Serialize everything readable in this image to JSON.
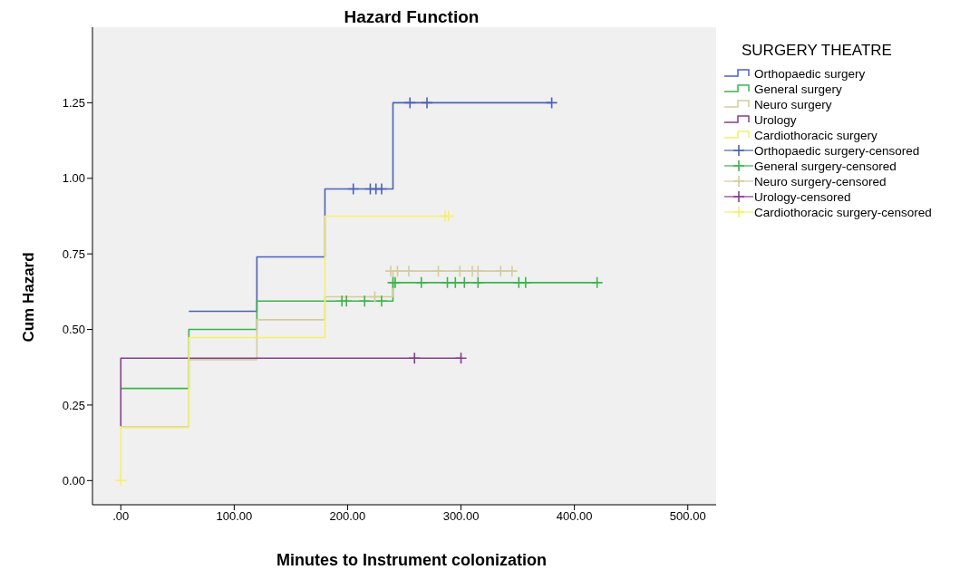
{
  "chart_data": {
    "type": "step",
    "title": "Hazard Function",
    "xlabel": "Minutes to Instrument colonization",
    "ylabel": "Cum Hazard",
    "legend_title": "SURGERY THEATRE",
    "legend": "right",
    "xlim": [
      -25,
      525
    ],
    "xticks": [
      {
        "value": 0,
        "label": ".00"
      },
      {
        "value": 100,
        "label": "100.00"
      },
      {
        "value": 200,
        "label": "200.00"
      },
      {
        "value": 300,
        "label": "300.00"
      },
      {
        "value": 400,
        "label": "400.00"
      },
      {
        "value": 500,
        "label": "500.00"
      }
    ],
    "ylim": [
      -0.08,
      1.5
    ],
    "yticks": [
      {
        "value": 0,
        "label": "0.00"
      },
      {
        "value": 0.25,
        "label": "0.25"
      },
      {
        "value": 0.5,
        "label": "0.50"
      },
      {
        "value": 0.75,
        "label": "0.75"
      },
      {
        "value": 1,
        "label": "1.00"
      },
      {
        "value": 1.25,
        "label": "1.25"
      }
    ],
    "series": [
      {
        "name": "Orthopaedic surgery",
        "color": "#4a62b8",
        "x": [
          60,
          120,
          180,
          240,
          380
        ],
        "values": [
          0.56,
          0.74,
          0.965,
          1.25,
          1.25
        ]
      },
      {
        "name": "General surgery",
        "color": "#3cb44b",
        "x": [
          0,
          60,
          120,
          240,
          420
        ],
        "values": [
          0.305,
          0.5,
          0.594,
          0.655,
          0.655
        ]
      },
      {
        "name": "Neuro surgery",
        "color": "#d4cc9c",
        "x": [
          0,
          60,
          120,
          180,
          240,
          347
        ],
        "values": [
          0.178,
          0.4,
          0.532,
          0.608,
          0.693,
          0.693
        ]
      },
      {
        "name": "Urology",
        "color": "#8a3a94",
        "x": [
          0,
          0,
          300
        ],
        "values": [
          0.18,
          0.405,
          0.405
        ]
      },
      {
        "name": "Cardiothoracic surgery",
        "color": "#f5f06a",
        "x": [
          0,
          0,
          60,
          180,
          288
        ],
        "values": [
          0,
          0.175,
          0.473,
          0.875,
          0.875
        ]
      },
      {
        "name": "Orthopaedic surgery-censored",
        "type": "scatter",
        "marker": "cross",
        "color": "#4a62b8",
        "x": [
          205,
          220,
          225,
          230,
          255,
          270,
          380
        ],
        "values": [
          0.965,
          0.965,
          0.965,
          0.965,
          1.25,
          1.25,
          1.25
        ]
      },
      {
        "name": "General surgery-censored",
        "type": "scatter",
        "marker": "cross",
        "color": "#3cb44b",
        "x": [
          195,
          199,
          215,
          230,
          240,
          242,
          265,
          288,
          295,
          303,
          315,
          351,
          357,
          420
        ],
        "values": [
          0.594,
          0.594,
          0.594,
          0.594,
          0.655,
          0.655,
          0.655,
          0.655,
          0.655,
          0.655,
          0.655,
          0.655,
          0.655,
          0.655
        ]
      },
      {
        "name": "Neuro surgery-censored",
        "type": "scatter",
        "marker": "cross",
        "color": "#d4cc9c",
        "x": [
          224,
          238,
          244,
          254,
          280,
          299,
          310,
          315,
          335,
          345
        ],
        "values": [
          0.608,
          0.693,
          0.693,
          0.693,
          0.693,
          0.693,
          0.693,
          0.693,
          0.693,
          0.693
        ]
      },
      {
        "name": "Urology-censored",
        "type": "scatter",
        "marker": "cross",
        "color": "#8a3a94",
        "x": [
          259,
          300
        ],
        "values": [
          0.405,
          0.405
        ]
      },
      {
        "name": "Cardiothoracic surgery-censored",
        "type": "scatter",
        "marker": "cross",
        "color": "#f5f06a",
        "x": [
          0,
          286,
          289
        ],
        "values": [
          0,
          0.875,
          0.875
        ]
      }
    ]
  }
}
